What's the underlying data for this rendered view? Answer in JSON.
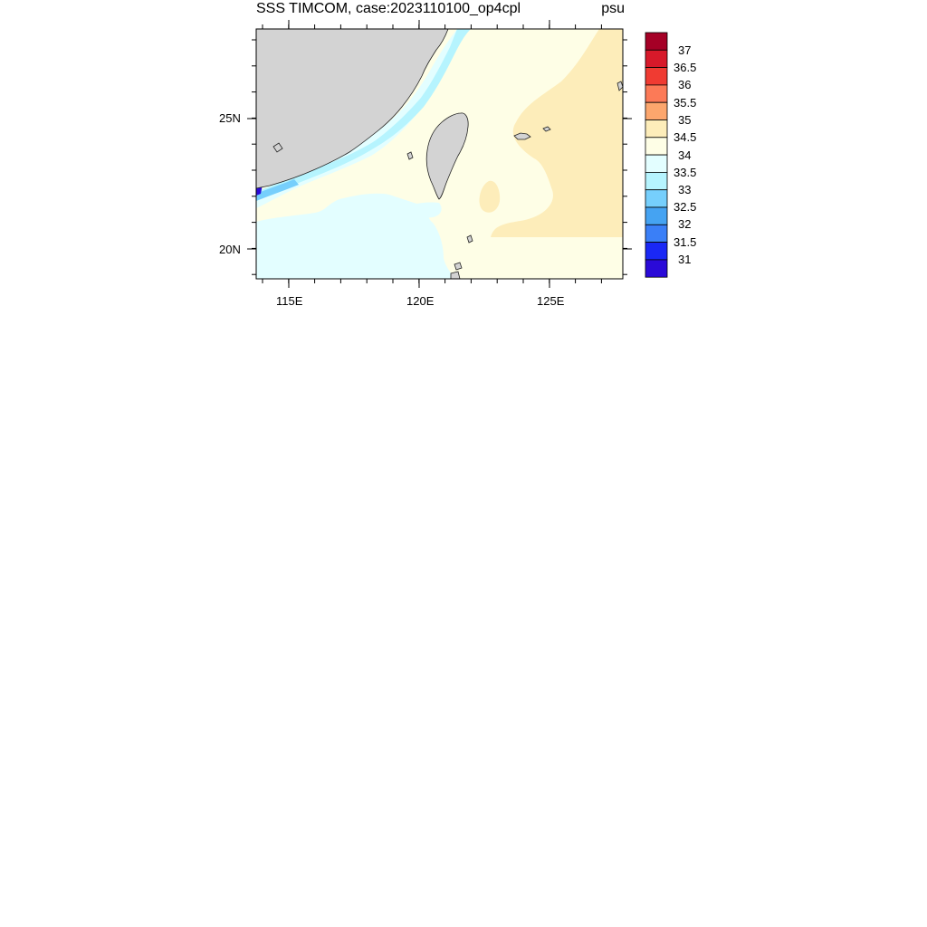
{
  "title": "SSS TIMCOM, case:2023110100_op4cpl",
  "units": "psu",
  "axes": {
    "x_ticks": [
      "115E",
      "120E",
      "125E"
    ],
    "y_ticks": [
      "25N",
      "20N"
    ]
  },
  "colorbar": {
    "labels": [
      "37",
      "36.5",
      "36",
      "35.5",
      "35",
      "34.5",
      "34",
      "33.5",
      "33",
      "32.5",
      "32",
      "31.5",
      "31"
    ],
    "colors": [
      "#a50026",
      "#d7192a",
      "#f03b32",
      "#fc7a57",
      "#fca66d",
      "#fdedba",
      "#fefee6",
      "#e3feff",
      "#b6f4fe",
      "#76cffc",
      "#45a3f2",
      "#3a7ff7",
      "#1a28f5",
      "#2a0ad8"
    ]
  },
  "map_colors": {
    "land": "#d3d3d3",
    "fill_34_345": "#fefee6",
    "fill_345_35": "#fdedba",
    "fill_335_34": "#e3feff",
    "fill_33_335": "#b6f4fe",
    "fill_low": "#2a0ad8"
  }
}
